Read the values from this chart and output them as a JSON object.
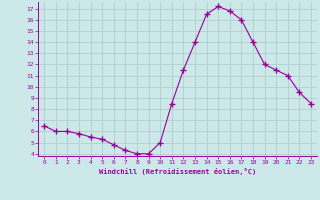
{
  "x": [
    0,
    1,
    2,
    3,
    4,
    5,
    6,
    7,
    8,
    9,
    10,
    11,
    12,
    13,
    14,
    15,
    16,
    17,
    18,
    19,
    20,
    21,
    22,
    23
  ],
  "y": [
    6.5,
    6.0,
    6.0,
    5.8,
    5.5,
    5.3,
    4.8,
    4.3,
    4.0,
    4.0,
    5.0,
    8.5,
    11.5,
    14.0,
    16.5,
    17.2,
    16.8,
    16.0,
    14.0,
    12.0,
    11.5,
    11.0,
    9.5,
    8.5
  ],
  "line_color": "#990099",
  "marker": "+",
  "marker_size": 4,
  "bg_color": "#cce8e8",
  "grid_color": "#aacccc",
  "xlabel": "Windchill (Refroidissement éolien,°C)",
  "xlabel_color": "#990099",
  "tick_color": "#990099",
  "ylim": [
    3.8,
    17.6
  ],
  "xlim": [
    -0.5,
    23.5
  ],
  "yticks": [
    4,
    5,
    6,
    7,
    8,
    9,
    10,
    11,
    12,
    13,
    14,
    15,
    16,
    17
  ],
  "xticks": [
    0,
    1,
    2,
    3,
    4,
    5,
    6,
    7,
    8,
    9,
    10,
    11,
    12,
    13,
    14,
    15,
    16,
    17,
    18,
    19,
    20,
    21,
    22,
    23
  ]
}
